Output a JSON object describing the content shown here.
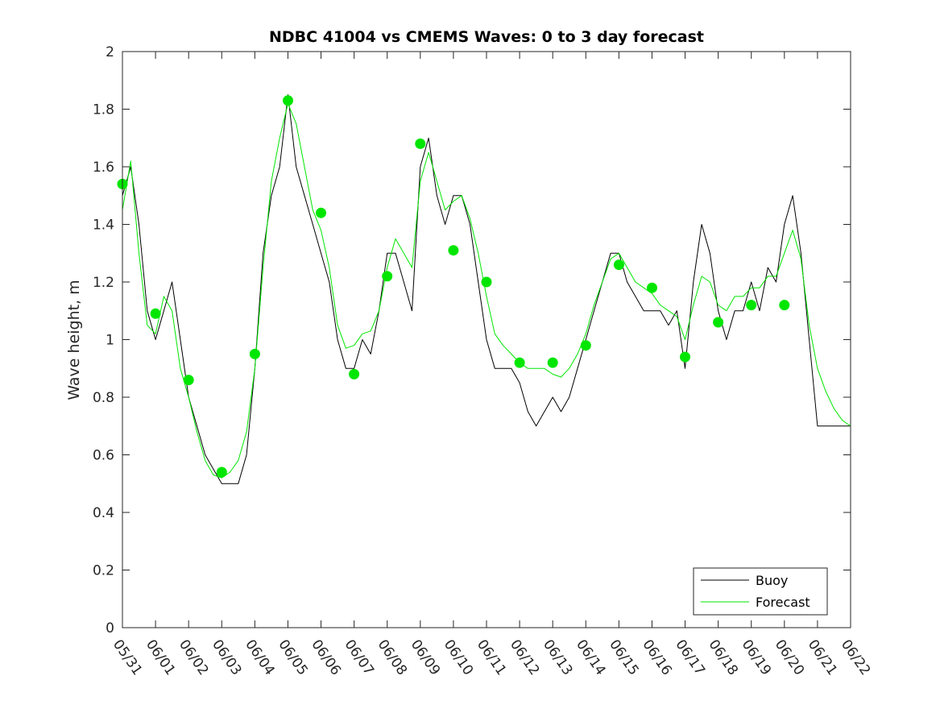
{
  "chart_data": {
    "type": "line",
    "title": "NDBC 41004 vs CMEMS Waves: 0 to 3 day forecast",
    "xlabel": "",
    "ylabel": "Wave height, m",
    "ylim": [
      0,
      2
    ],
    "yticks": [
      "0",
      "0.2",
      "0.4",
      "0.6",
      "0.8",
      "1",
      "1.2",
      "1.4",
      "1.6",
      "1.8",
      "2"
    ],
    "xlim": [
      "05/31",
      "06/22"
    ],
    "xticks": [
      "05/31",
      "06/01",
      "06/02",
      "06/03",
      "06/04",
      "06/05",
      "06/06",
      "06/07",
      "06/08",
      "06/09",
      "06/10",
      "06/11",
      "06/12",
      "06/13",
      "06/14",
      "06/15",
      "06/16",
      "06/17",
      "06/18",
      "06/19",
      "06/20",
      "06/21",
      "06/22"
    ],
    "grid": false,
    "legend": {
      "placement": "bottom-right",
      "entries": [
        "Buoy",
        "Forecast"
      ]
    },
    "colors": {
      "buoy": "#000000",
      "forecast": "#00e600"
    },
    "series": [
      {
        "name": "Buoy",
        "x_days": [
          0,
          0.25,
          0.5,
          0.75,
          1,
          1.25,
          1.5,
          1.75,
          2,
          2.25,
          2.5,
          2.75,
          3,
          3.25,
          3.5,
          3.75,
          4,
          4.25,
          4.5,
          4.75,
          5,
          5.25,
          5.5,
          5.75,
          6,
          6.25,
          6.5,
          6.75,
          7,
          7.25,
          7.5,
          7.75,
          8,
          8.25,
          8.5,
          8.75,
          9,
          9.25,
          9.5,
          9.75,
          10,
          10.25,
          10.5,
          10.75,
          11,
          11.25,
          11.5,
          11.75,
          12,
          12.25,
          12.5,
          12.75,
          13,
          13.25,
          13.5,
          13.75,
          14,
          14.25,
          14.5,
          14.75,
          15,
          15.25,
          15.5,
          15.75,
          16,
          16.25,
          16.5,
          16.75,
          17,
          17.25,
          17.5,
          17.75,
          18,
          18.25,
          18.5,
          18.75,
          19,
          19.25,
          19.5,
          19.75,
          20,
          20.25,
          20.5,
          20.75,
          21,
          21.25,
          21.5,
          21.75,
          22
        ],
        "values": [
          1.5,
          1.6,
          1.4,
          1.1,
          1.0,
          1.1,
          1.2,
          1.0,
          0.8,
          0.7,
          0.6,
          0.55,
          0.5,
          0.5,
          0.5,
          0.6,
          0.9,
          1.3,
          1.5,
          1.6,
          1.85,
          1.6,
          1.5,
          1.4,
          1.3,
          1.2,
          1.0,
          0.9,
          0.9,
          1.0,
          0.95,
          1.1,
          1.3,
          1.3,
          1.2,
          1.1,
          1.6,
          1.7,
          1.5,
          1.4,
          1.5,
          1.5,
          1.4,
          1.2,
          1.0,
          0.9,
          0.9,
          0.9,
          0.85,
          0.75,
          0.7,
          0.75,
          0.8,
          0.75,
          0.8,
          0.9,
          1.0,
          1.1,
          1.2,
          1.3,
          1.3,
          1.2,
          1.15,
          1.1,
          1.1,
          1.1,
          1.05,
          1.1,
          0.9,
          1.2,
          1.4,
          1.3,
          1.1,
          1.0,
          1.1,
          1.1,
          1.2,
          1.1,
          1.25,
          1.2,
          1.4,
          1.5,
          1.3,
          1.0,
          0.7,
          0.7,
          0.7,
          0.7,
          0.7
        ]
      },
      {
        "name": "Forecast",
        "x_days": [
          0,
          0.25,
          0.5,
          0.75,
          1,
          1.25,
          1.5,
          1.75,
          2,
          2.25,
          2.5,
          2.75,
          3,
          3.25,
          3.5,
          3.75,
          4,
          4.25,
          4.5,
          4.75,
          5,
          5.25,
          5.5,
          5.75,
          6,
          6.25,
          6.5,
          6.75,
          7,
          7.25,
          7.5,
          7.75,
          8,
          8.25,
          8.5,
          8.75,
          9,
          9.25,
          9.5,
          9.75,
          10,
          10.25,
          10.5,
          10.75,
          11,
          11.25,
          11.5,
          11.75,
          12,
          12.25,
          12.5,
          12.75,
          13,
          13.25,
          13.5,
          13.75,
          14,
          14.25,
          14.5,
          14.75,
          15,
          15.25,
          15.5,
          15.75,
          16,
          16.25,
          16.5,
          16.75,
          17,
          17.25,
          17.5,
          17.75,
          18,
          18.25,
          18.5,
          18.75,
          19,
          19.25,
          19.5,
          19.75,
          20,
          20.25,
          20.5,
          20.75,
          21,
          21.25,
          21.5,
          21.75,
          22
        ],
        "values": [
          1.45,
          1.62,
          1.3,
          1.05,
          1.02,
          1.15,
          1.1,
          0.9,
          0.8,
          0.68,
          0.58,
          0.53,
          0.52,
          0.54,
          0.58,
          0.68,
          0.9,
          1.25,
          1.55,
          1.7,
          1.82,
          1.75,
          1.6,
          1.45,
          1.38,
          1.25,
          1.05,
          0.97,
          0.98,
          1.02,
          1.03,
          1.1,
          1.25,
          1.35,
          1.3,
          1.25,
          1.55,
          1.65,
          1.55,
          1.45,
          1.48,
          1.5,
          1.42,
          1.3,
          1.15,
          1.02,
          0.98,
          0.95,
          0.92,
          0.9,
          0.9,
          0.9,
          0.88,
          0.87,
          0.9,
          0.95,
          1.02,
          1.12,
          1.2,
          1.28,
          1.3,
          1.25,
          1.2,
          1.18,
          1.16,
          1.12,
          1.1,
          1.08,
          1.0,
          1.12,
          1.22,
          1.2,
          1.12,
          1.1,
          1.15,
          1.15,
          1.18,
          1.18,
          1.22,
          1.22,
          1.3,
          1.38,
          1.28,
          1.05,
          0.9,
          0.82,
          0.76,
          0.72,
          0.7
        ]
      }
    ],
    "markers": {
      "x_days": [
        0,
        1,
        2,
        3,
        4,
        5,
        6,
        7,
        8,
        9,
        10,
        11,
        12,
        13,
        14,
        15,
        16,
        17,
        18,
        19,
        20
      ],
      "values": [
        1.54,
        1.09,
        0.86,
        0.54,
        0.95,
        1.83,
        1.44,
        0.88,
        1.22,
        1.68,
        1.31,
        1.2,
        0.92,
        0.92,
        0.98,
        1.26,
        1.18,
        0.94,
        1.06,
        1.12,
        1.12
      ]
    }
  }
}
